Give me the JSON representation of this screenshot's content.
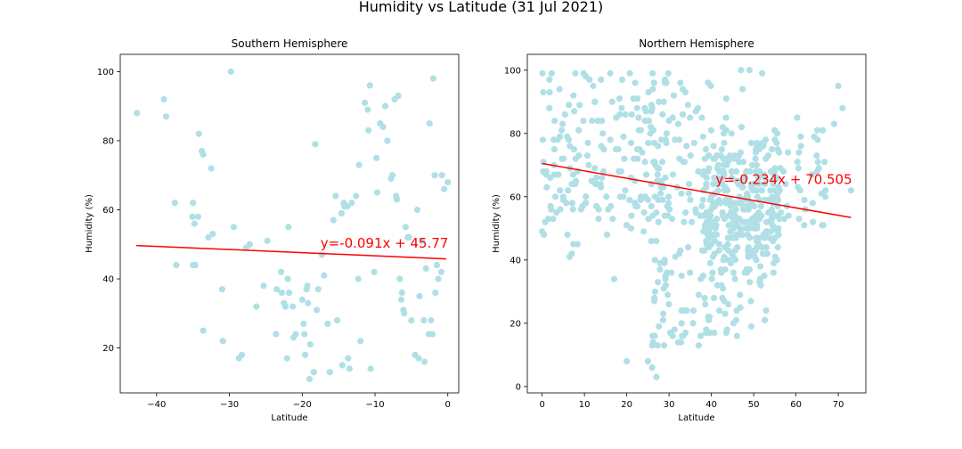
{
  "figure": {
    "suptitle": "Humidity vs Latitude (31 Jul 2021)"
  },
  "chart_data": [
    {
      "type": "scatter",
      "title": "Southern Hemisphere",
      "xlabel": "Latitude",
      "ylabel": "Humidity (%)",
      "xlim": [
        -45,
        1.5
      ],
      "ylim": [
        7,
        105
      ],
      "xticks": [
        -40,
        -30,
        -20,
        -10,
        0
      ],
      "yticks": [
        20,
        40,
        60,
        80,
        100
      ],
      "grid": false,
      "marker_color": "#b0e0e6",
      "regression": {
        "slope": -0.091,
        "intercept": 45.77,
        "x_range": [
          -42.8,
          -0.2
        ],
        "color": "#ff0000"
      },
      "equation_label": "y=-0.091x + 45.77",
      "equation_anchor": [
        -17.5,
        49
      ],
      "points": [
        [
          -42.7,
          88
        ],
        [
          -39.0,
          92
        ],
        [
          -38.7,
          87
        ],
        [
          -37.5,
          62
        ],
        [
          -37.3,
          44
        ],
        [
          -35.0,
          62
        ],
        [
          -35.1,
          58
        ],
        [
          -34.8,
          56
        ],
        [
          -35.0,
          44
        ],
        [
          -34.7,
          44
        ],
        [
          -34.3,
          58
        ],
        [
          -34.2,
          82
        ],
        [
          -33.8,
          77
        ],
        [
          -33.6,
          76
        ],
        [
          -33.6,
          25
        ],
        [
          -32.9,
          52
        ],
        [
          -32.5,
          72
        ],
        [
          -32.3,
          53
        ],
        [
          -31.0,
          37
        ],
        [
          -30.9,
          22
        ],
        [
          -29.8,
          100
        ],
        [
          -29.4,
          55
        ],
        [
          -28.7,
          17
        ],
        [
          -28.3,
          18
        ],
        [
          -27.7,
          49
        ],
        [
          -27.2,
          50
        ],
        [
          -26.3,
          32
        ],
        [
          -25.3,
          38
        ],
        [
          -24.8,
          51
        ],
        [
          -23.6,
          24
        ],
        [
          -23.5,
          37
        ],
        [
          -22.9,
          42
        ],
        [
          -22.8,
          36
        ],
        [
          -22.5,
          33
        ],
        [
          -22.3,
          32
        ],
        [
          -22.1,
          17
        ],
        [
          -22.0,
          40
        ],
        [
          -21.9,
          55
        ],
        [
          -21.8,
          36
        ],
        [
          -21.3,
          32
        ],
        [
          -21.2,
          23
        ],
        [
          -20.9,
          24
        ],
        [
          -20.0,
          34
        ],
        [
          -19.8,
          27
        ],
        [
          -19.7,
          24
        ],
        [
          -19.6,
          18
        ],
        [
          -19.4,
          37
        ],
        [
          -19.3,
          38
        ],
        [
          -19.2,
          33
        ],
        [
          -19.0,
          11
        ],
        [
          -18.9,
          21
        ],
        [
          -18.4,
          13
        ],
        [
          -18.2,
          79
        ],
        [
          -18.0,
          31
        ],
        [
          -17.8,
          37
        ],
        [
          -17.3,
          47
        ],
        [
          -17.0,
          41
        ],
        [
          -16.5,
          27
        ],
        [
          -16.2,
          13
        ],
        [
          -15.7,
          57
        ],
        [
          -15.4,
          64
        ],
        [
          -15.2,
          28
        ],
        [
          -14.6,
          59
        ],
        [
          -14.5,
          15
        ],
        [
          -14.3,
          62
        ],
        [
          -14.2,
          61
        ],
        [
          -13.8,
          61
        ],
        [
          -13.7,
          17
        ],
        [
          -13.5,
          14
        ],
        [
          -13.2,
          62
        ],
        [
          -12.6,
          64
        ],
        [
          -12.3,
          40
        ],
        [
          -12.2,
          73
        ],
        [
          -12.0,
          22
        ],
        [
          -11.4,
          91
        ],
        [
          -11.0,
          89
        ],
        [
          -10.9,
          83
        ],
        [
          -10.7,
          96
        ],
        [
          -10.6,
          14
        ],
        [
          -10.1,
          42
        ],
        [
          -9.8,
          75
        ],
        [
          -9.7,
          65
        ],
        [
          -9.3,
          85
        ],
        [
          -8.9,
          84
        ],
        [
          -8.6,
          90
        ],
        [
          -8.3,
          80
        ],
        [
          -7.8,
          69
        ],
        [
          -7.6,
          70
        ],
        [
          -7.3,
          92
        ],
        [
          -7.1,
          64
        ],
        [
          -7.0,
          63
        ],
        [
          -6.8,
          93
        ],
        [
          -6.6,
          40
        ],
        [
          -6.4,
          34
        ],
        [
          -6.3,
          36
        ],
        [
          -6.1,
          31
        ],
        [
          -6.0,
          30
        ],
        [
          -5.8,
          55
        ],
        [
          -5.5,
          52
        ],
        [
          -5.3,
          52
        ],
        [
          -5.0,
          28
        ],
        [
          -4.5,
          18
        ],
        [
          -4.2,
          60
        ],
        [
          -4.0,
          17
        ],
        [
          -3.9,
          35
        ],
        [
          -3.6,
          51
        ],
        [
          -3.3,
          28
        ],
        [
          -3.2,
          16
        ],
        [
          -3.0,
          43
        ],
        [
          -2.6,
          24
        ],
        [
          -2.5,
          85
        ],
        [
          -2.3,
          28
        ],
        [
          -2.1,
          24
        ],
        [
          -2.0,
          98
        ],
        [
          -1.8,
          70
        ],
        [
          -1.7,
          36
        ],
        [
          -1.5,
          44
        ],
        [
          -1.3,
          40
        ],
        [
          -0.9,
          42
        ],
        [
          -0.8,
          70
        ],
        [
          -0.5,
          66
        ],
        [
          0.0,
          68
        ]
      ]
    },
    {
      "type": "scatter",
      "title": "Northern Hemisphere",
      "xlabel": "Latitude",
      "ylabel": "Humidity (%)",
      "xlim": [
        -3.5,
        76.5
      ],
      "ylim": [
        -2,
        105
      ],
      "xticks": [
        0,
        10,
        20,
        30,
        40,
        50,
        60,
        70
      ],
      "yticks": [
        0,
        20,
        40,
        60,
        80,
        100
      ],
      "grid": false,
      "marker_color": "#b0e0e6",
      "regression": {
        "slope": -0.234,
        "intercept": 70.505,
        "x_range": [
          0,
          73
        ],
        "color": "#ff0000"
      },
      "equation_label": "y=-0.234x + 70.505",
      "equation_anchor": [
        41,
        64
      ]
    }
  ]
}
